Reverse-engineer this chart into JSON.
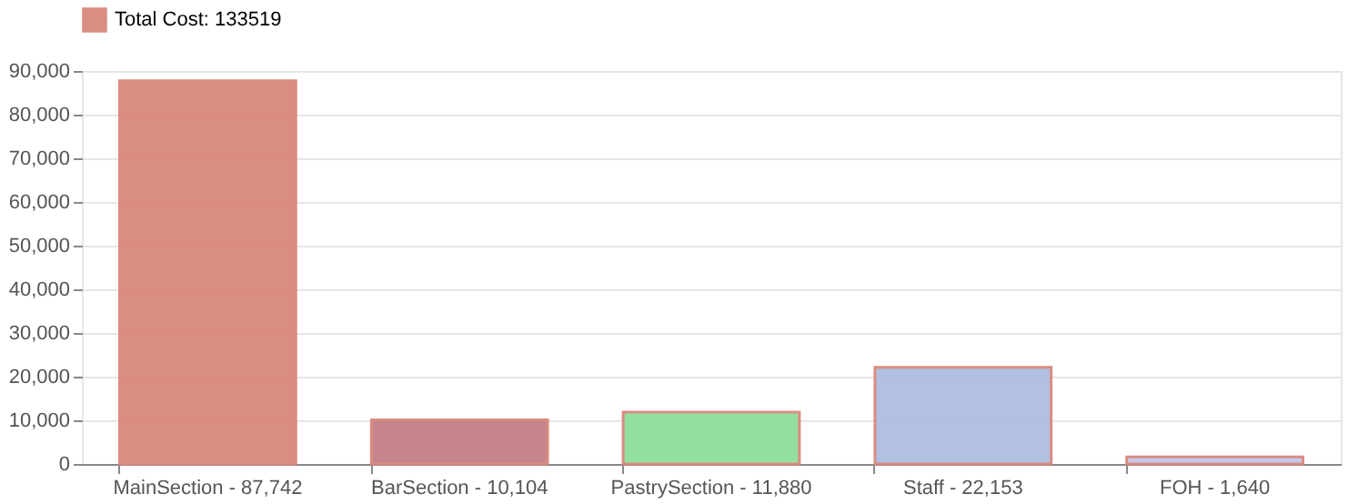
{
  "chart_data": {
    "type": "bar",
    "categories": [
      "MainSection - 87,742",
      "BarSection - 10,104",
      "PastrySection - 11,880",
      "Staff - 22,153",
      "FOH - 1,640"
    ],
    "series": [
      {
        "name": "Total Cost: 133519",
        "color": "#d9877c",
        "values": [
          87742,
          10104,
          11880,
          22153,
          1640
        ]
      }
    ],
    "colors": [
      "#d9877c",
      "#c47f86",
      "#8ede9e",
      "#aebde0",
      "#c2c8ee"
    ],
    "ylim": [
      0,
      90000
    ],
    "yticks": [
      {
        "value": 0,
        "label": "0"
      },
      {
        "value": 10000,
        "label": "10,000"
      },
      {
        "value": 20000,
        "label": "20,000"
      },
      {
        "value": 30000,
        "label": "30,000"
      },
      {
        "value": 40000,
        "label": "40,000"
      },
      {
        "value": 50000,
        "label": "50,000"
      },
      {
        "value": 60000,
        "label": "60,000"
      },
      {
        "value": 70000,
        "label": "70,000"
      },
      {
        "value": 80000,
        "label": "80,000"
      },
      {
        "value": 90000,
        "label": "90,000"
      }
    ],
    "grid": true,
    "legend": "top"
  }
}
